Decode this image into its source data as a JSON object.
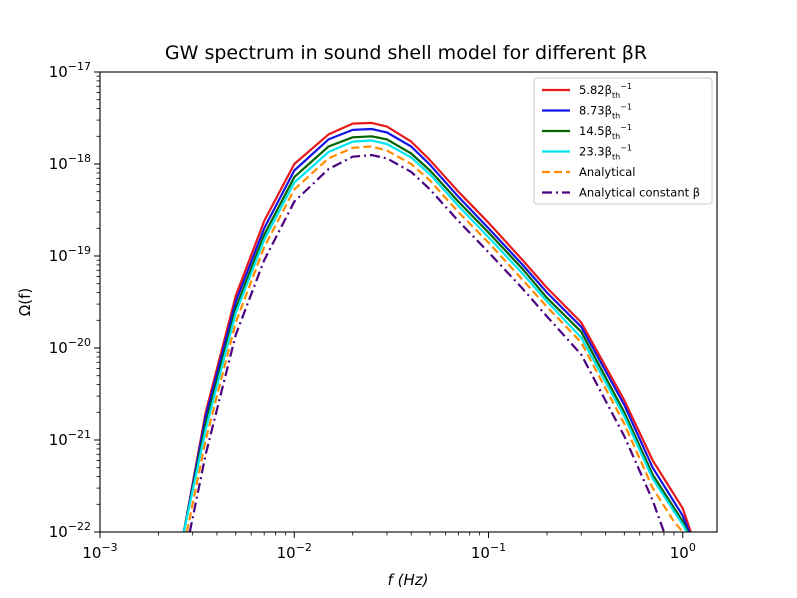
{
  "chart_data": {
    "type": "line",
    "title": "GW spectrum in sound shell model for different βR",
    "xlabel": "f (Hz)",
    "ylabel": "Ω(f)",
    "xscale": "log",
    "yscale": "log",
    "xlim": [
      0.001,
      1.5
    ],
    "ylim": [
      1e-22,
      1e-17
    ],
    "xticks": [
      {
        "value": 0.001,
        "base": "10",
        "exp": "−3"
      },
      {
        "value": 0.01,
        "base": "10",
        "exp": "−2"
      },
      {
        "value": 0.1,
        "base": "10",
        "exp": "−1"
      },
      {
        "value": 1,
        "base": "10",
        "exp": "0"
      }
    ],
    "yticks": [
      {
        "value": 1e-22,
        "base": "10",
        "exp": "−22"
      },
      {
        "value": 1e-21,
        "base": "10",
        "exp": "−21"
      },
      {
        "value": 1e-20,
        "base": "10",
        "exp": "−20"
      },
      {
        "value": 1e-19,
        "base": "10",
        "exp": "−19"
      },
      {
        "value": 1e-18,
        "base": "10",
        "exp": "−18"
      },
      {
        "value": 1e-17,
        "base": "10",
        "exp": "−17"
      }
    ],
    "legend_position": "top-right",
    "series": [
      {
        "name": "5.82βth⁻¹",
        "label_main": "5.82β",
        "label_sub": "th",
        "label_sup": "−1",
        "color": "#e8191b",
        "dash": "solid",
        "x": [
          0.0027,
          0.0035,
          0.005,
          0.007,
          0.01,
          0.015,
          0.02,
          0.025,
          0.03,
          0.04,
          0.05,
          0.07,
          0.1,
          0.15,
          0.2,
          0.3,
          0.5,
          0.7,
          1.0,
          1.1
        ],
        "y": [
          1e-22,
          2e-21,
          3.7e-20,
          2.4e-19,
          1e-18,
          2.1e-18,
          2.75e-18,
          2.8e-18,
          2.55e-18,
          1.75e-18,
          1.1e-18,
          5e-19,
          2.3e-19,
          9e-20,
          4.5e-20,
          1.9e-20,
          2.7e-21,
          6e-22,
          1.8e-22,
          1e-22
        ]
      },
      {
        "name": "8.73βth⁻¹",
        "label_main": "8.73β",
        "label_sub": "th",
        "label_sup": "−1",
        "color": "#1414e6",
        "dash": "solid",
        "x": [
          0.0027,
          0.0035,
          0.005,
          0.007,
          0.01,
          0.015,
          0.02,
          0.025,
          0.03,
          0.04,
          0.05,
          0.07,
          0.1,
          0.15,
          0.2,
          0.3,
          0.5,
          0.7,
          1.0,
          1.08
        ],
        "y": [
          1e-22,
          1.8e-21,
          3.2e-20,
          2e-19,
          8.5e-19,
          1.85e-18,
          2.35e-18,
          2.4e-18,
          2.2e-18,
          1.55e-18,
          9.8e-19,
          4.4e-19,
          2e-19,
          8e-20,
          4e-20,
          1.7e-20,
          2.4e-21,
          5e-22,
          1.5e-22,
          1e-22
        ]
      },
      {
        "name": "14.5βth⁻¹",
        "label_main": "14.5β",
        "label_sub": "th",
        "label_sup": "−1",
        "color": "#006400",
        "dash": "solid",
        "x": [
          0.0027,
          0.0035,
          0.005,
          0.007,
          0.01,
          0.015,
          0.02,
          0.025,
          0.03,
          0.04,
          0.05,
          0.07,
          0.1,
          0.15,
          0.2,
          0.3,
          0.5,
          0.7,
          1.0,
          1.06
        ],
        "y": [
          1e-22,
          1.5e-21,
          2.7e-20,
          1.7e-19,
          7.2e-19,
          1.55e-18,
          1.95e-18,
          2e-18,
          1.85e-18,
          1.3e-18,
          8.5e-19,
          3.9e-19,
          1.8e-19,
          7.2e-20,
          3.5e-20,
          1.5e-20,
          2e-21,
          4.2e-22,
          1.3e-22,
          1e-22
        ]
      },
      {
        "name": "23.3βth⁻¹",
        "label_main": "23.3β",
        "label_sub": "th",
        "label_sup": "−1",
        "color": "#00e5f0",
        "dash": "solid",
        "x": [
          0.0027,
          0.0035,
          0.005,
          0.007,
          0.01,
          0.015,
          0.02,
          0.025,
          0.03,
          0.04,
          0.05,
          0.07,
          0.1,
          0.15,
          0.2,
          0.3,
          0.5,
          0.7,
          1.0,
          1.05
        ],
        "y": [
          1e-22,
          1.3e-21,
          2.4e-20,
          1.5e-19,
          6.3e-19,
          1.35e-18,
          1.75e-18,
          1.8e-18,
          1.65e-18,
          1.18e-18,
          7.7e-19,
          3.5e-19,
          1.6e-19,
          6.4e-20,
          3.2e-20,
          1.3e-20,
          1.8e-21,
          3.8e-22,
          1.2e-22,
          1e-22
        ]
      },
      {
        "name": "Analytical",
        "label_main": "Analytical",
        "label_sub": "",
        "label_sup": "",
        "color": "#ff8c00",
        "dash": "dashed",
        "x": [
          0.0028,
          0.0035,
          0.005,
          0.007,
          0.01,
          0.015,
          0.02,
          0.025,
          0.03,
          0.04,
          0.05,
          0.07,
          0.1,
          0.15,
          0.2,
          0.3,
          0.5,
          0.7,
          0.9,
          1.0
        ],
        "y": [
          1e-22,
          1e-21,
          1.9e-20,
          1.25e-19,
          5.3e-19,
          1.15e-18,
          1.5e-18,
          1.55e-18,
          1.4e-18,
          1e-18,
          6.6e-19,
          3e-19,
          1.4e-19,
          5.5e-20,
          2.8e-20,
          1.15e-20,
          1.5e-21,
          3e-22,
          1.3e-22,
          1e-22
        ]
      },
      {
        "name": "Analytical constant β",
        "label_main": "Analytical constant β",
        "label_sub": "",
        "label_sup": "",
        "color": "#4b0082",
        "dash": "dashdot",
        "x": [
          0.0029,
          0.0035,
          0.005,
          0.007,
          0.01,
          0.015,
          0.02,
          0.025,
          0.03,
          0.04,
          0.05,
          0.07,
          0.1,
          0.15,
          0.2,
          0.3,
          0.5,
          0.7,
          0.8
        ],
        "y": [
          1e-22,
          7e-22,
          1.4e-20,
          9e-20,
          3.9e-19,
          8.8e-19,
          1.2e-18,
          1.25e-18,
          1.15e-18,
          8.2e-19,
          5.3e-19,
          2.4e-19,
          1.1e-19,
          4.4e-20,
          2.2e-20,
          8.5e-21,
          1.1e-21,
          2.2e-22,
          1e-22
        ]
      }
    ]
  }
}
